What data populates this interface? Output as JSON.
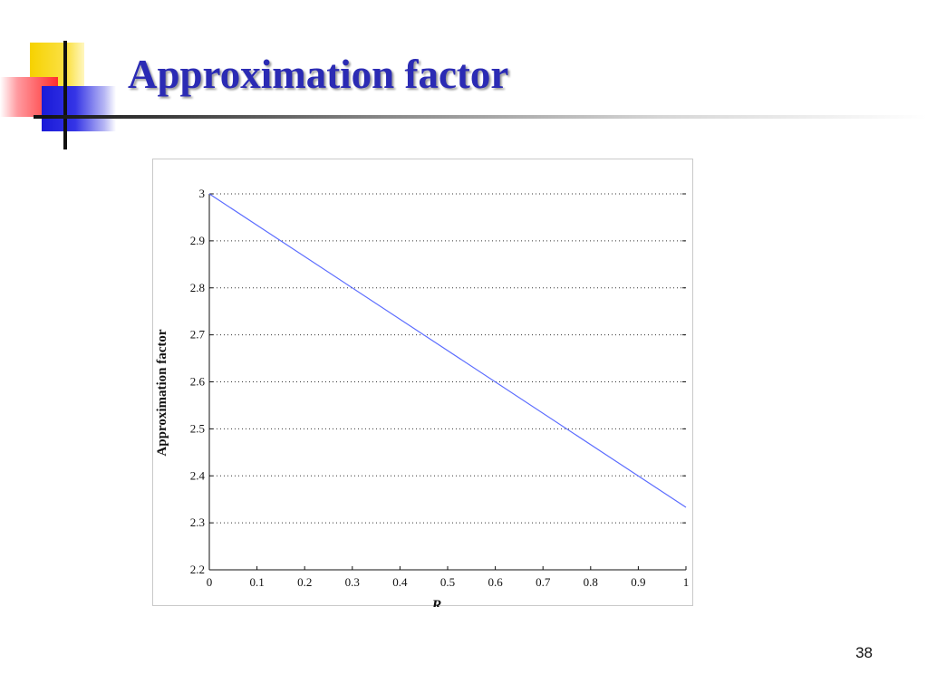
{
  "slide": {
    "title": "Approximation factor",
    "page_number": "38",
    "title_color": "#2b2bb4"
  },
  "chart_data": {
    "type": "line",
    "title": "",
    "xlabel": "R",
    "ylabel": "Approximation factor",
    "xlim": [
      0,
      1
    ],
    "ylim": [
      2.2,
      3
    ],
    "x_ticks": [
      "0",
      "0.1",
      "0.2",
      "0.3",
      "0.4",
      "0.5",
      "0.6",
      "0.7",
      "0.8",
      "0.9",
      "1"
    ],
    "y_ticks": [
      "2.2",
      "2.3",
      "2.4",
      "2.5",
      "2.6",
      "2.7",
      "2.8",
      "2.9",
      "3"
    ],
    "grid": "horizontal dotted",
    "series": [
      {
        "color": "#5b6cff",
        "x": [
          0,
          1
        ],
        "y": [
          3,
          2.333
        ]
      }
    ]
  }
}
